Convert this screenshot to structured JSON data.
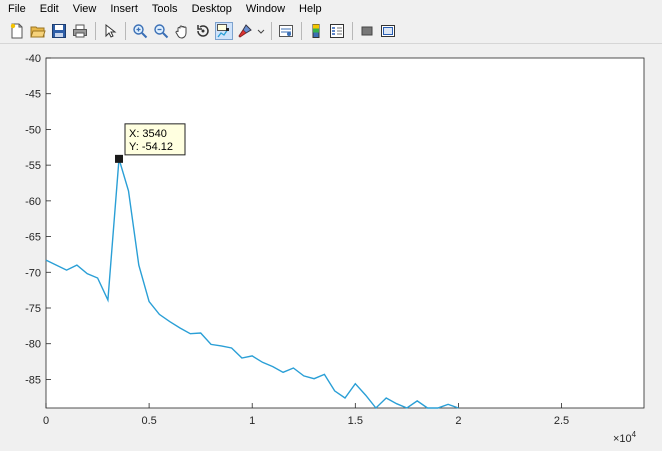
{
  "menu": {
    "items": [
      "File",
      "Edit",
      "View",
      "Insert",
      "Tools",
      "Desktop",
      "Window",
      "Help"
    ]
  },
  "toolbar": {
    "buttons": [
      {
        "icon": "new-figure-icon"
      },
      {
        "icon": "open-folder-icon"
      },
      {
        "icon": "save-icon"
      },
      {
        "icon": "print-icon"
      },
      {
        "icon": "pointer-icon"
      },
      {
        "icon": "zoom-in-icon"
      },
      {
        "icon": "zoom-out-icon"
      },
      {
        "icon": "pan-hand-icon"
      },
      {
        "icon": "rotate-3d-icon"
      },
      {
        "icon": "data-cursor-icon",
        "active": true
      },
      {
        "icon": "brush-icon"
      },
      {
        "icon": "link-plot-icon"
      },
      {
        "icon": "colorbar-icon"
      },
      {
        "icon": "legend-icon"
      },
      {
        "icon": "hide-plot-tools-icon"
      },
      {
        "icon": "show-plot-tools-icon"
      }
    ]
  },
  "colors": {
    "line": "#2a9fd6",
    "axes_bg": "#ffffff",
    "figure_bg": "#f0f0f0",
    "datatip_bg": "#ffffe0"
  },
  "chart_data": {
    "type": "line",
    "title": "",
    "xlabel": "",
    "ylabel": "",
    "xlim": [
      0,
      29000
    ],
    "ylim": [
      -89,
      -40
    ],
    "x_exponent_label": "×10",
    "x_exponent_power": "4",
    "xticks": [
      0,
      5000,
      10000,
      15000,
      20000,
      25000
    ],
    "xtick_labels": [
      "0",
      "0.5",
      "1",
      "1.5",
      "2",
      "2.5"
    ],
    "yticks": [
      -40,
      -45,
      -50,
      -55,
      -60,
      -65,
      -70,
      -75,
      -80,
      -85
    ],
    "ytick_labels": [
      "-40",
      "-45",
      "-50",
      "-55",
      "-60",
      "-65",
      "-70",
      "-75",
      "-80",
      "-85"
    ],
    "grid": false,
    "series": [
      {
        "x": [
          0,
          500,
          1000,
          1500,
          2000,
          2500,
          3000,
          3540,
          4000,
          4500,
          5000,
          5500,
          6000,
          6500,
          7000,
          7500,
          8000,
          8500,
          9000,
          9500,
          10000,
          10500,
          11000,
          11500,
          12000,
          12500,
          13000,
          13500,
          14000,
          14500,
          15000,
          15500,
          16000,
          16500,
          17000,
          17500,
          18000,
          18500,
          19000,
          19500,
          20000
        ],
        "y": [
          -68.3,
          -69.0,
          -69.7,
          -69.0,
          -70.2,
          -70.8,
          -73.9,
          -54.12,
          -58.6,
          -69.0,
          -74.1,
          -75.9,
          -76.9,
          -77.8,
          -78.6,
          -78.5,
          -80.1,
          -80.3,
          -80.6,
          -82.0,
          -81.7,
          -82.6,
          -83.2,
          -84.0,
          -83.4,
          -84.5,
          -84.9,
          -84.3,
          -86.6,
          -87.6,
          -85.6,
          -87.2,
          -89.1,
          -87.6,
          -88.4,
          -89.0,
          -88.0,
          -89.0,
          -89.5,
          -88.5,
          -89.5
        ]
      }
    ],
    "datatip": {
      "x": 3540,
      "y": -54.12,
      "x_text": "X: 3540",
      "y_text": "Y: -54.12"
    }
  }
}
